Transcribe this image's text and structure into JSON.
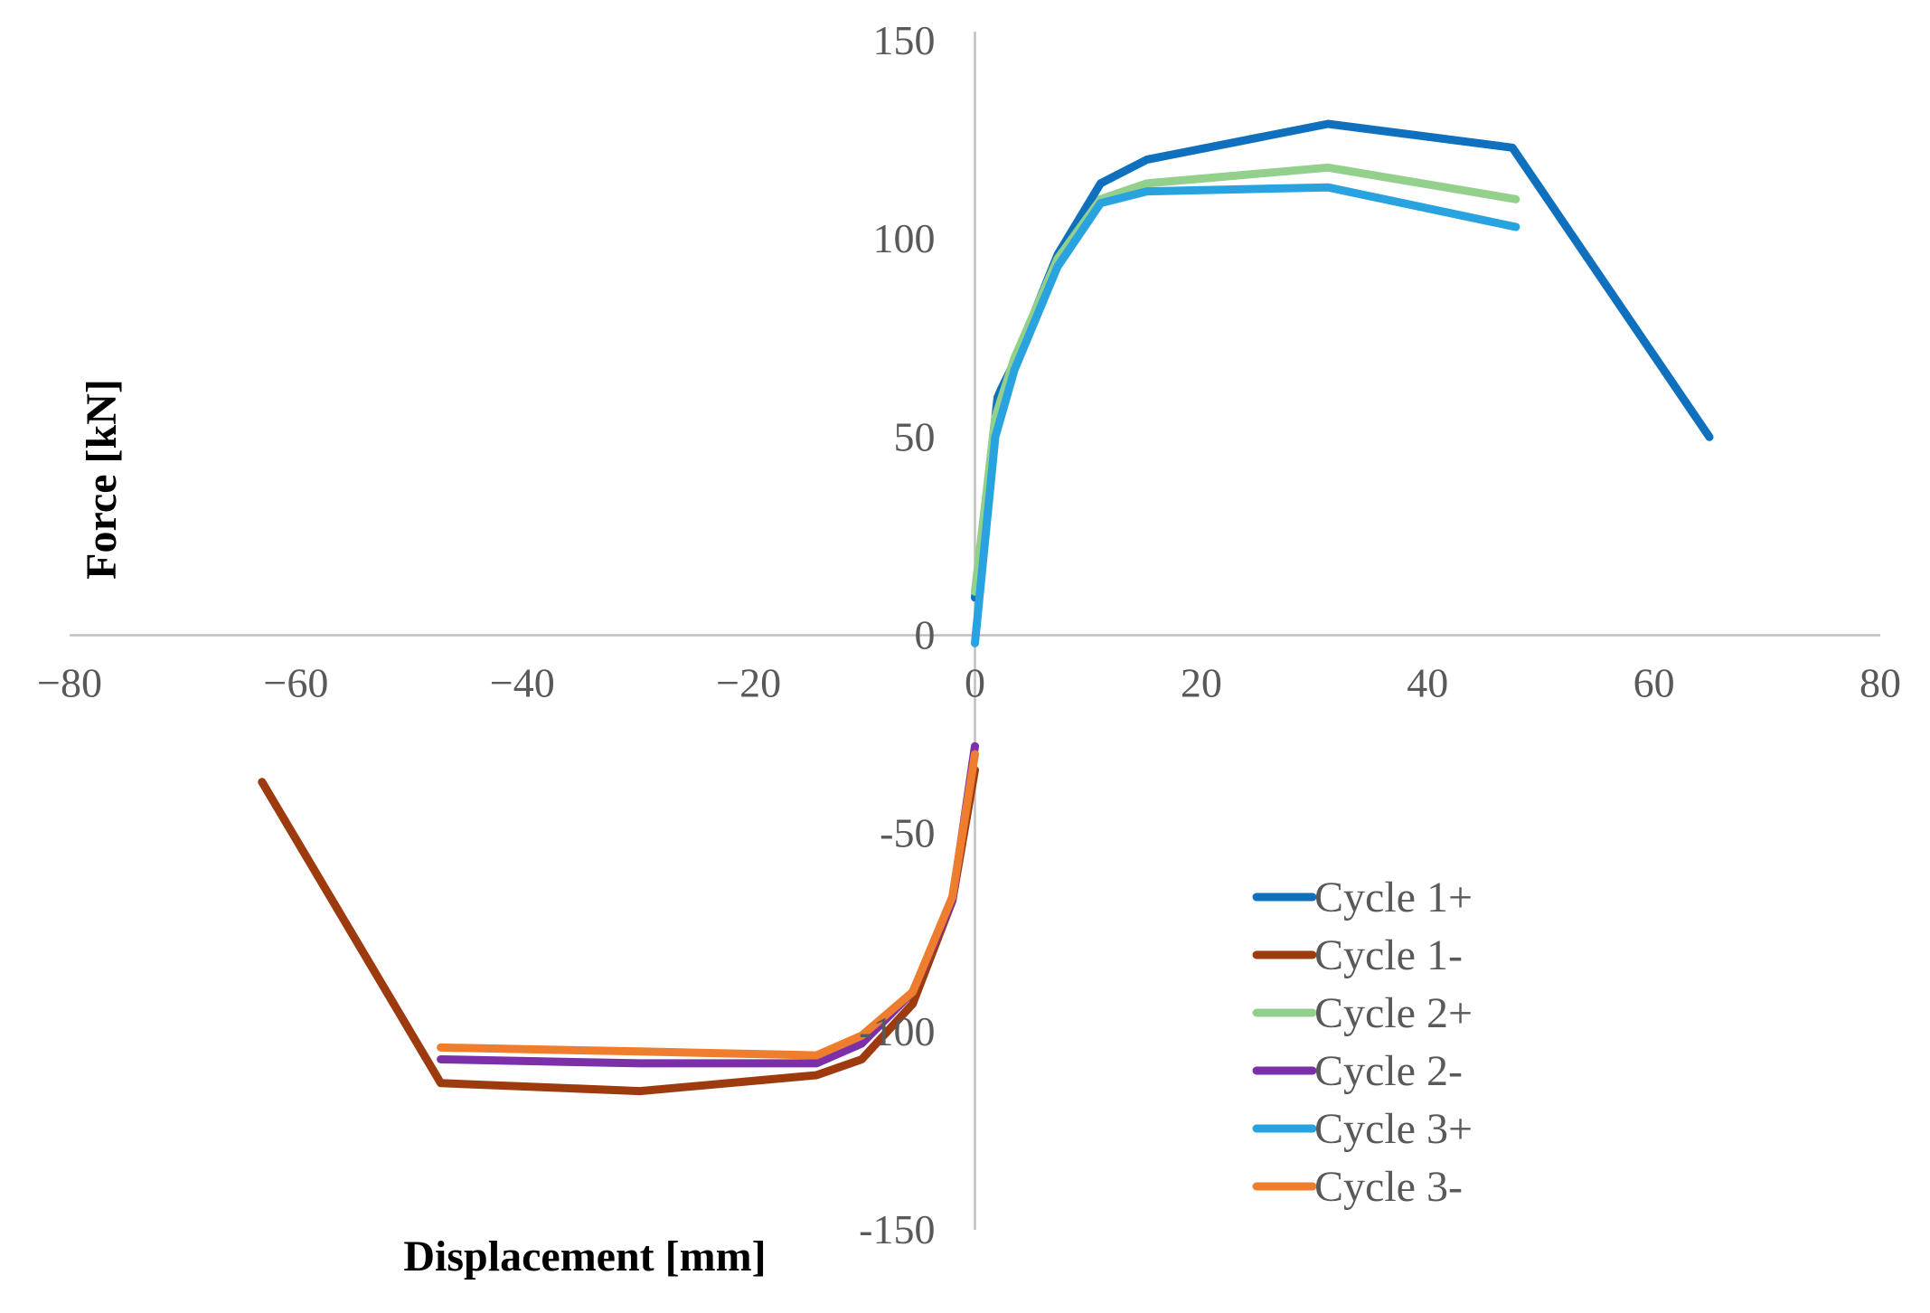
{
  "chart_data": {
    "type": "line",
    "title": "",
    "xlabel": "Displacement [mm]",
    "ylabel": "Force [kN]",
    "xlim": [
      -80,
      80
    ],
    "ylim": [
      -150,
      150
    ],
    "x_ticks": [
      -80,
      -60,
      -40,
      -20,
      0,
      20,
      40,
      60,
      80
    ],
    "y_ticks": [
      -150,
      -100,
      -50,
      0,
      50,
      100,
      150
    ],
    "x_tick_labels": [
      "-80",
      "-60",
      "-40",
      "-20",
      "0",
      "20",
      "40",
      "60",
      "80"
    ],
    "y_tick_labels": [
      "-150",
      "-100",
      "-50",
      "0",
      "50",
      "100",
      "150"
    ],
    "grid": false,
    "legend_position": "right",
    "series": [
      {
        "name": "Cycle 1+",
        "color": "#0f70bd",
        "x": [
          0,
          2,
          2.3,
          3.5,
          7.3,
          11.1,
          15.2,
          31.2,
          47.5,
          64.9
        ],
        "y": [
          9.5,
          60,
          62,
          69,
          96,
          114,
          120,
          129,
          123,
          50
        ]
      },
      {
        "name": "Cycle 1-",
        "color": "#9e3b0e",
        "x": [
          0,
          -2,
          -5.5,
          -10,
          -14,
          -29.6,
          -47.2,
          -63
        ],
        "y": [
          -34,
          -67,
          -93,
          -107,
          -111,
          -115,
          -113,
          -37
        ]
      },
      {
        "name": "Cycle 2+",
        "color": "#92d08c",
        "x": [
          0,
          1.8,
          3.5,
          7.3,
          11.1,
          15.2,
          31.2,
          47.8
        ],
        "y": [
          11,
          55,
          70,
          95,
          110,
          114,
          118,
          110
        ]
      },
      {
        "name": "Cycle 2-",
        "color": "#7b2fa8",
        "x": [
          0,
          -2,
          -5.5,
          -10,
          -14,
          -29.6,
          -47.2
        ],
        "y": [
          -28,
          -67,
          -90,
          -103,
          -108,
          -108,
          -107
        ]
      },
      {
        "name": "Cycle 3+",
        "color": "#29a3e0",
        "x": [
          0,
          1.8,
          3.5,
          7.3,
          11.1,
          15.2,
          31.2,
          47.8
        ],
        "y": [
          -2,
          50,
          67,
          93,
          109,
          112,
          113,
          103
        ]
      },
      {
        "name": "Cycle 3-",
        "color": "#ef7d2e",
        "x": [
          0,
          -2,
          -5.5,
          -10,
          -14,
          -29.6,
          -47.2
        ],
        "y": [
          -30,
          -66,
          -90,
          -101,
          -106,
          -105,
          -104
        ]
      }
    ]
  }
}
